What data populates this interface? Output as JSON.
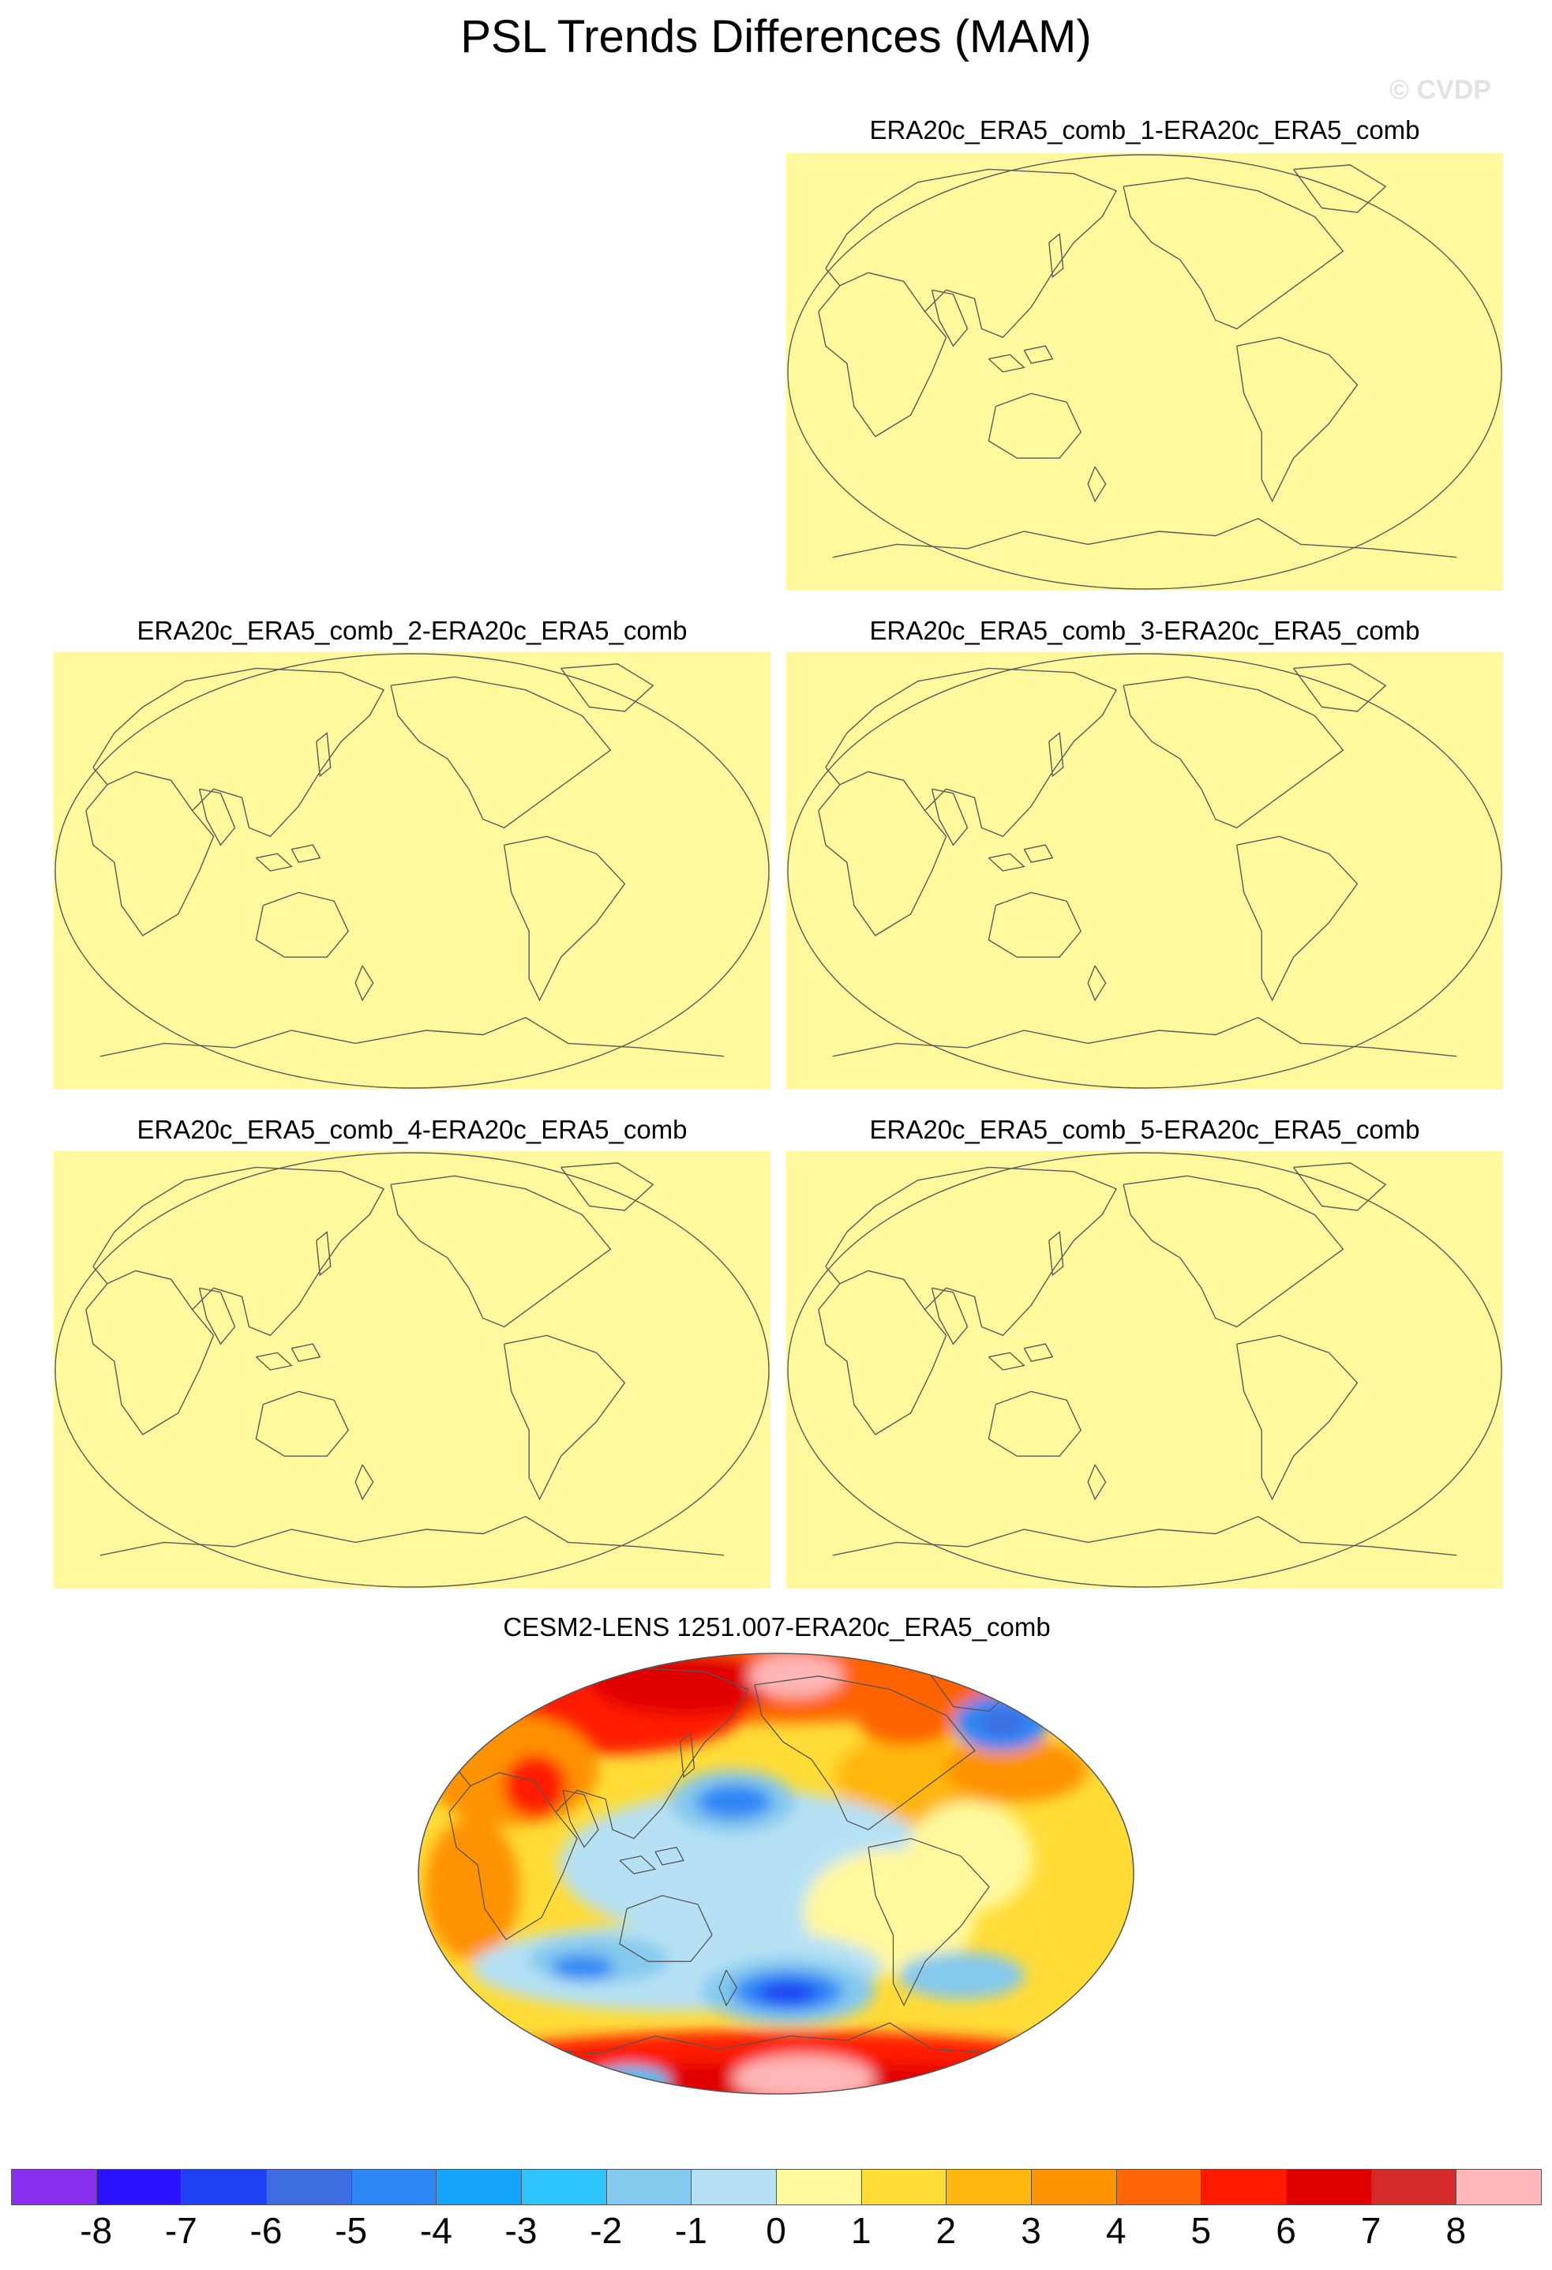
{
  "figure": {
    "title": "PSL Trends Differences (MAM)",
    "watermark": "© CVDP"
  },
  "panels": [
    {
      "title": "ERA20c_ERA5_comb_1-ERA20c_ERA5_comb",
      "field": "uniform",
      "fill_color": "#fff89c"
    },
    {
      "title": "ERA20c_ERA5_comb_2-ERA20c_ERA5_comb",
      "field": "uniform",
      "fill_color": "#fff89c"
    },
    {
      "title": "ERA20c_ERA5_comb_3-ERA20c_ERA5_comb",
      "field": "uniform",
      "fill_color": "#fff89c"
    },
    {
      "title": "ERA20c_ERA5_comb_4-ERA20c_ERA5_comb",
      "field": "uniform",
      "fill_color": "#fff89c"
    },
    {
      "title": "ERA20c_ERA5_comb_5-ERA20c_ERA5_comb",
      "field": "uniform",
      "fill_color": "#fff89c"
    },
    {
      "title": "CESM2-LENS 1251.007-ERA20c_ERA5_comb",
      "field": "varying"
    }
  ],
  "colorbar": {
    "labels": [
      "-8",
      "-7",
      "-6",
      "-5",
      "-4",
      "-3",
      "-2",
      "-1",
      "0",
      "1",
      "2",
      "3",
      "4",
      "5",
      "6",
      "7",
      "8"
    ],
    "colors": [
      "#8a2ff0",
      "#2a12ff",
      "#1e3ff2",
      "#3d6de0",
      "#2e86f5",
      "#14a4fc",
      "#2cc4fb",
      "#84c9ee",
      "#b6e1f4",
      "#fff89c",
      "#ffdc36",
      "#ffb710",
      "#ff9200",
      "#ff6405",
      "#ff1a00",
      "#e00000",
      "#d42a2a",
      "#ffb6b6"
    ]
  }
}
